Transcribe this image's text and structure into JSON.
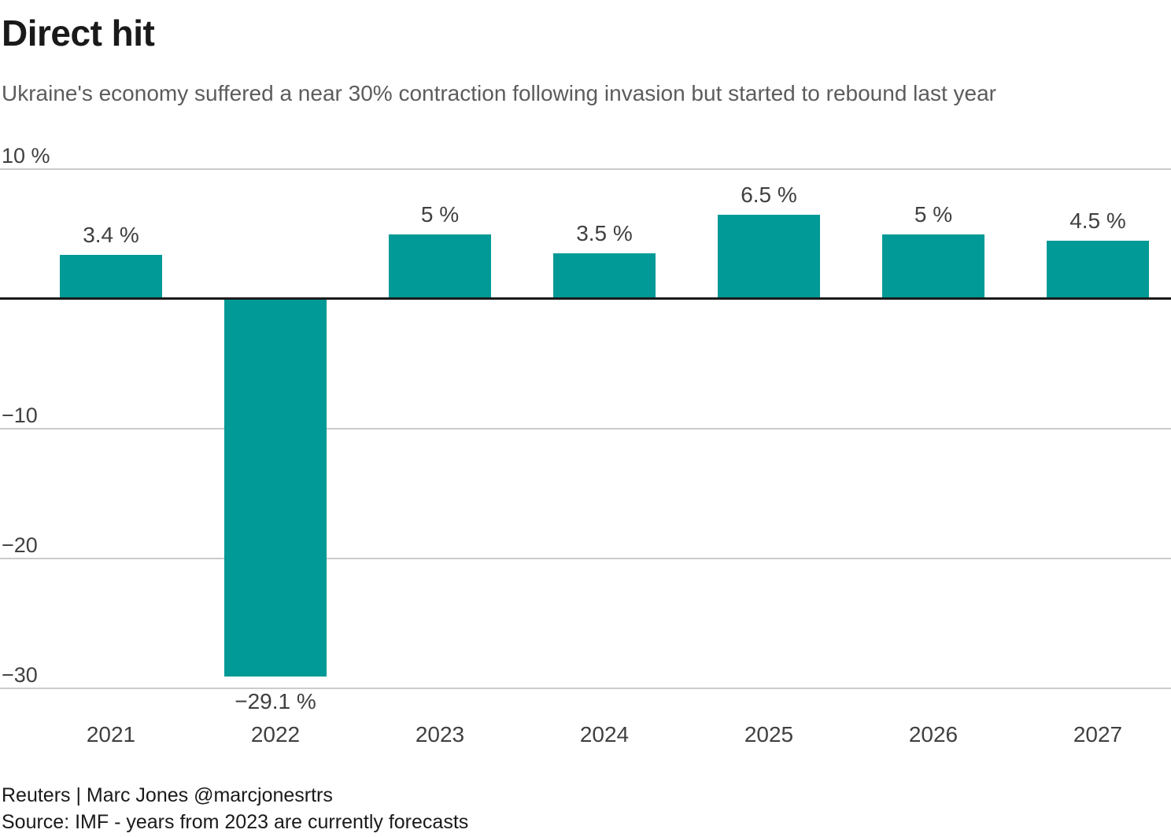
{
  "chart_data": {
    "type": "bar",
    "title": "Direct hit",
    "subtitle": "Ukraine's economy suffered a near 30% contraction following invasion but started to rebound last year",
    "categories": [
      "2021",
      "2022",
      "2023",
      "2024",
      "2025",
      "2026",
      "2027"
    ],
    "values": [
      3.4,
      -29.1,
      5,
      3.5,
      6.5,
      5,
      4.5
    ],
    "value_labels": [
      "3.4 %",
      "−29.1 %",
      "5 %",
      "3.5 %",
      "6.5 %",
      "5 %",
      "4.5 %"
    ],
    "ylim": [
      -30,
      10
    ],
    "yticks": [
      {
        "value": 10,
        "label": "10 %"
      },
      {
        "value": -10,
        "label": "−10"
      },
      {
        "value": -20,
        "label": "−20"
      },
      {
        "value": -30,
        "label": "−30"
      }
    ],
    "grid": true,
    "legend": "none",
    "colors": {
      "bar": "#019A96",
      "gridline": "#cccccc",
      "zero_axis": "#1a1a1a",
      "title": "#1a1a1a",
      "subtitle": "#5c5c5c",
      "labels": "#404040"
    }
  },
  "footer": {
    "byline": "Reuters | Marc Jones @marcjonesrtrs",
    "source": "Source: IMF - years from 2023 are currently forecasts"
  }
}
